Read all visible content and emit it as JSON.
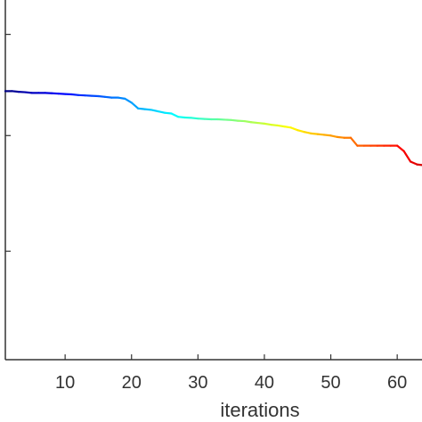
{
  "chart_data": {
    "type": "line",
    "xlabel": "iterations",
    "ylabel": "",
    "title": "",
    "xlim": [
      1,
      64
    ],
    "ylim": [
      0,
      1
    ],
    "x_ticks": [
      10,
      20,
      30,
      40,
      50,
      60
    ],
    "x_tick_labels": [
      "10",
      "20",
      "30",
      "40",
      "50",
      "60"
    ],
    "y_ticks": [
      0.3,
      0.62,
      0.9
    ],
    "y_tick_labels": [
      "",
      "",
      ""
    ],
    "grid": false,
    "legend": "none",
    "colormap": "jet",
    "series": [
      {
        "x": [
          1,
          2,
          3,
          4,
          5,
          6,
          7,
          8,
          9,
          10,
          11,
          12,
          13,
          14,
          15,
          16,
          17,
          18,
          19,
          20,
          21,
          22,
          23,
          24,
          25,
          26,
          27,
          28,
          29,
          30,
          31,
          32,
          33,
          34,
          35,
          36,
          37,
          38,
          39,
          40,
          41,
          42,
          43,
          44,
          45,
          46,
          47,
          48,
          49,
          50,
          51,
          52,
          53,
          54,
          55,
          56,
          57,
          58,
          59,
          60,
          61,
          62,
          63,
          64
        ],
        "values": [
          0.743,
          0.743,
          0.741,
          0.74,
          0.738,
          0.738,
          0.738,
          0.737,
          0.736,
          0.735,
          0.734,
          0.732,
          0.731,
          0.73,
          0.729,
          0.727,
          0.725,
          0.725,
          0.722,
          0.711,
          0.695,
          0.693,
          0.691,
          0.687,
          0.683,
          0.681,
          0.672,
          0.67,
          0.669,
          0.667,
          0.666,
          0.665,
          0.665,
          0.664,
          0.663,
          0.661,
          0.66,
          0.657,
          0.655,
          0.653,
          0.65,
          0.648,
          0.645,
          0.642,
          0.635,
          0.63,
          0.626,
          0.624,
          0.622,
          0.62,
          0.616,
          0.614,
          0.614,
          0.592,
          0.592,
          0.592,
          0.592,
          0.592,
          0.592,
          0.592,
          0.577,
          0.548,
          0.54,
          0.538
        ]
      }
    ]
  }
}
